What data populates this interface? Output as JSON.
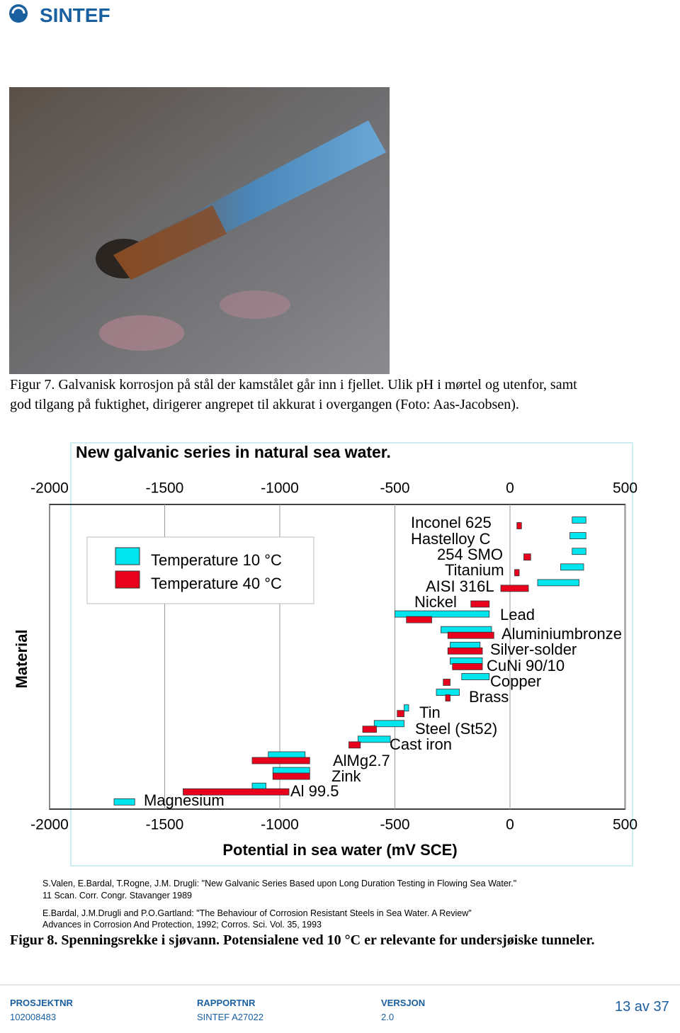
{
  "header": {
    "logo": "SINTEF"
  },
  "figure7": {
    "caption": [
      "Figur 7. Galvanisk korrosjon på stål der kamstålet går inn i fjellet. Ulik pH i mørtel og utenfor, samt",
      "god tilgang på fuktighet, dirigerer angrepet til akkurat i overgangen (Foto: Aas-Jacobsen)."
    ]
  },
  "chart_data": {
    "type": "range-bar",
    "title": "New galvanic series in natural sea water.",
    "xlabel": "Potential in sea water (mV SCE)",
    "ylabel": "Material",
    "categories": [
      "Inconel 625",
      "Hastelloy C",
      "254 SMO",
      "Titanium",
      "AISI 316L",
      "Nickel",
      "Lead",
      "Aluminiumbronze",
      "Silver-solder",
      "CuNi 90/10",
      "Copper",
      "Brass",
      "Tin",
      "Steel (St52)",
      "Cast iron",
      "AlMg2.7",
      "Zink",
      "Al 99.5",
      "Magnesium"
    ],
    "series": [
      {
        "name": "Temperature 10 °C",
        "color": "#00e5ee",
        "low": [
          270,
          260,
          270,
          220,
          120,
          null,
          -500,
          -300,
          -260,
          -260,
          -210,
          -320,
          -460,
          -590,
          -660,
          -1050,
          -1030,
          -1120,
          -1720
        ],
        "high": [
          330,
          330,
          330,
          320,
          300,
          null,
          -90,
          -80,
          -130,
          -120,
          -90,
          -220,
          -440,
          -460,
          -520,
          -890,
          -870,
          -1060,
          -1630
        ]
      },
      {
        "name": "Temperature 40 °C",
        "color": "#e8001c",
        "low": [
          30,
          null,
          60,
          20,
          -40,
          -170,
          -450,
          -270,
          -270,
          -250,
          -290,
          -280,
          -490,
          -640,
          -700,
          -1120,
          -1030,
          -1420,
          null
        ],
        "high": [
          50,
          null,
          90,
          40,
          80,
          -90,
          -340,
          -70,
          -120,
          -120,
          -260,
          -260,
          -460,
          -580,
          -650,
          -870,
          -870,
          -960,
          null
        ]
      }
    ],
    "xlim": [
      -2000,
      500
    ],
    "xticks": [
      -2000,
      -1500,
      -1000,
      -500,
      0,
      500
    ],
    "grid": true
  },
  "references": [
    "S.Valen, E.Bardal, T.Rogne, J.M. Drugli: \"New Galvanic Series Based upon Long Duration Testing in Flowing Sea Water.\"",
    "11 Scan. Corr. Congr. Stavanger 1989",
    "E.Bardal, J.M.Drugli and P.O.Gartland: \"The Behaviour of Corrosion Resistant Steels in Sea Water. A Review\"",
    "Advances in Corrosion And Protection, 1992; Corros. Sci. Vol. 35, 1993"
  ],
  "figure8": {
    "caption": "Figur 8. Spenningsrekke i sjøvann. Potensialene ved 10 °C er relevante for undersjøiske tunneler."
  },
  "footer": {
    "items": [
      {
        "label": "PROSJEKTNR",
        "value": "102008483"
      },
      {
        "label": "RAPPORTNR",
        "value": "SINTEF A27022"
      },
      {
        "label": "VERSJON",
        "value": "2.0"
      }
    ],
    "page": "13 av 37"
  }
}
